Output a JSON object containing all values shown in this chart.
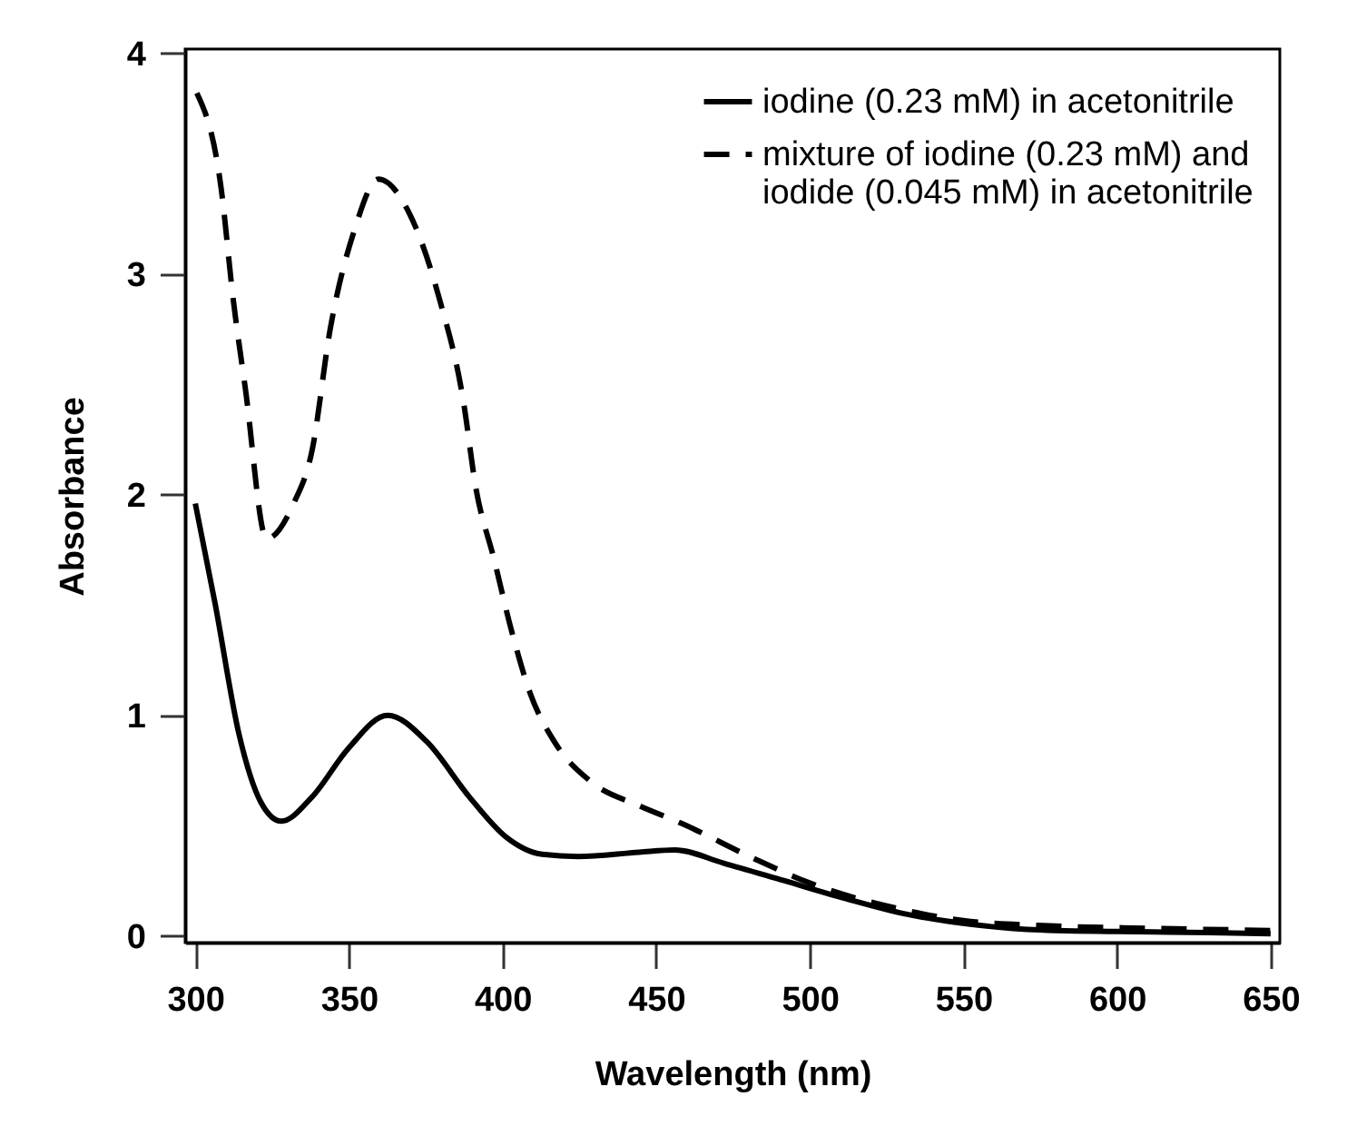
{
  "chart_data": {
    "type": "line",
    "xlabel": "Wavelength (nm)",
    "ylabel": "Absorbance",
    "xlim": [
      296.7,
      653
    ],
    "ylim": [
      -0.03,
      4.02
    ],
    "xticks": [
      300,
      350,
      400,
      450,
      500,
      550,
      600,
      650
    ],
    "yticks": [
      0,
      1,
      2,
      3,
      4
    ],
    "grid": false,
    "legend": "top right",
    "marker": "none",
    "series": [
      {
        "name": "iodine (0.23 mM) in acetonitrile",
        "color": "#000000",
        "line_style": "solid",
        "x": [
          300,
          306.4,
          314.3,
          321.2,
          328,
          338,
          349.8,
          362.6,
          375.4,
          389.2,
          401,
          412.9,
          424.7,
          444.5,
          456,
          472,
          491.8,
          511.5,
          531,
          551,
          570.7,
          600,
          630,
          650
        ],
        "values": [
          1.96,
          1.51,
          0.91,
          0.61,
          0.52,
          0.63,
          0.85,
          1.0,
          0.88,
          0.63,
          0.45,
          0.37,
          0.36,
          0.38,
          0.39,
          0.33,
          0.25,
          0.17,
          0.1,
          0.055,
          0.03,
          0.02,
          0.015,
          0.01
        ]
      },
      {
        "name": "mixture of iodine (0.23 mM) and\n iodide (0.045 mM) in acetonitrile",
        "color": "#000000",
        "line_style": "dashed",
        "x": [
          300.5,
          308.4,
          312.3,
          316.3,
          323.2,
          332,
          338,
          343.9,
          351.8,
          359.6,
          369.5,
          379.4,
          387.3,
          391.2,
          397.2,
          403,
          409,
          416.9,
          428.7,
          444.5,
          458.3,
          482,
          500,
          530,
          550,
          580,
          610,
          650
        ],
        "values": [
          3.82,
          3.39,
          2.89,
          2.48,
          1.8,
          1.96,
          2.2,
          2.75,
          3.2,
          3.43,
          3.28,
          2.89,
          2.42,
          2.04,
          1.71,
          1.38,
          1.1,
          0.88,
          0.7,
          0.59,
          0.51,
          0.35,
          0.24,
          0.12,
          0.07,
          0.045,
          0.035,
          0.025
        ]
      }
    ]
  }
}
